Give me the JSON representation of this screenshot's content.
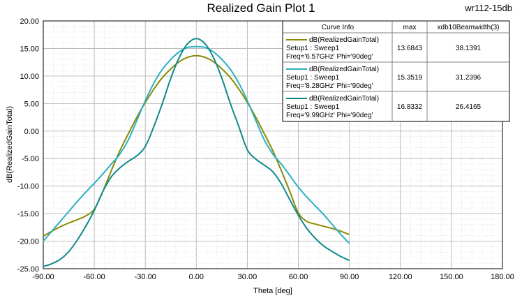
{
  "plot": {
    "title": "Realized Gain Plot 1",
    "project": "wr112-15db"
  },
  "legend": {
    "headers": [
      "Curve Info",
      "max",
      "xdb10Beamwidth(3)"
    ],
    "rows": [
      {
        "name": "dB(RealizedGainTotal)",
        "setup": "Setup1 : Sweep1",
        "freq": "Freq='6.57GHz' Phi='90deg'",
        "max": "13.6843",
        "beamwidth": "38.1391",
        "color": "#8c8a00"
      },
      {
        "name": "dB(RealizedGainTotal)",
        "setup": "Setup1 : Sweep1",
        "freq": "Freq='8.28GHz' Phi='90deg'",
        "max": "15.3519",
        "beamwidth": "31.2396",
        "color": "#2ab0bf"
      },
      {
        "name": "dB(RealizedGainTotal)",
        "setup": "Setup1 : Sweep1",
        "freq": "Freq='9.99GHz' Phi='90deg'",
        "max": "16.8332",
        "beamwidth": "26.4165",
        "color": "#0e8a8a"
      }
    ]
  },
  "chart_data": {
    "type": "line",
    "title": "Realized Gain Plot 1",
    "xlabel": "Theta [deg]",
    "ylabel": "dB(RealizedGainTotal)",
    "xlim": [
      -90,
      180
    ],
    "ylim": [
      -25,
      20
    ],
    "xticks": [
      -90,
      -60,
      -30,
      0,
      30,
      60,
      90,
      120,
      150,
      180
    ],
    "xtick_labels": [
      "-90.00",
      "-60.00",
      "-30.00",
      "0.00",
      "30.00",
      "60.00",
      "90.00",
      "120.00",
      "150.00",
      "180.00"
    ],
    "yticks": [
      -25,
      -20,
      -15,
      -10,
      -5,
      0,
      5,
      10,
      15,
      20
    ],
    "ytick_labels": [
      "-25.00",
      "-20.00",
      "-15.00",
      "-10.00",
      "-5.00",
      "0.00",
      "5.00",
      "10.00",
      "15.00",
      "20.00"
    ],
    "grid": true,
    "series": [
      {
        "name": "Freq='6.57GHz' Phi='90deg'",
        "color": "#8c8a00",
        "x": [
          -90,
          -85,
          -80,
          -75,
          -70,
          -65,
          -60,
          -55,
          -50,
          -45,
          -40,
          -35,
          -30,
          -25,
          -20,
          -15,
          -10,
          -5,
          0,
          5,
          10,
          15,
          20,
          25,
          30,
          35,
          40,
          45,
          50,
          55,
          60,
          65,
          70,
          75,
          80,
          85,
          90
        ],
        "y": [
          -19.1,
          -18.2,
          -17.4,
          -16.7,
          -16.1,
          -15.4,
          -14.2,
          -11.0,
          -7.2,
          -3.6,
          -0.5,
          2.5,
          5.2,
          7.6,
          9.7,
          11.3,
          12.6,
          13.4,
          13.7,
          13.4,
          12.6,
          11.3,
          9.7,
          7.6,
          5.2,
          2.5,
          -0.5,
          -3.6,
          -7.2,
          -11.0,
          -14.9,
          -16.4,
          -16.9,
          -17.3,
          -17.7,
          -18.2,
          -18.8
        ]
      },
      {
        "name": "Freq='8.28GHz' Phi='90deg'",
        "color": "#2ab0bf",
        "x": [
          -90,
          -85,
          -80,
          -75,
          -70,
          -65,
          -60,
          -55,
          -50,
          -45,
          -40,
          -35,
          -30,
          -25,
          -20,
          -15,
          -10,
          -5,
          0,
          5,
          10,
          15,
          20,
          25,
          30,
          35,
          40,
          45,
          50,
          55,
          60,
          65,
          70,
          75,
          80,
          85,
          90
        ],
        "y": [
          -20.0,
          -18.2,
          -16.4,
          -14.6,
          -12.8,
          -11.1,
          -9.5,
          -7.8,
          -6.0,
          -4.2,
          -1.6,
          1.9,
          5.5,
          8.7,
          11.2,
          13.0,
          14.4,
          15.2,
          15.35,
          15.2,
          14.4,
          13.0,
          11.2,
          8.7,
          5.5,
          1.9,
          -1.6,
          -4.2,
          -6.0,
          -8.1,
          -10.2,
          -12.0,
          -13.6,
          -15.2,
          -17.0,
          -18.8,
          -20.4
        ]
      },
      {
        "name": "Freq='9.99GHz' Phi='90deg'",
        "color": "#0e8a8a",
        "x": [
          -90,
          -85,
          -80,
          -75,
          -70,
          -65,
          -60,
          -55,
          -50,
          -45,
          -40,
          -35,
          -30,
          -25,
          -20,
          -15,
          -10,
          -5,
          0,
          5,
          10,
          15,
          20,
          25,
          30,
          35,
          40,
          45,
          50,
          55,
          60,
          65,
          70,
          75,
          80,
          85,
          90
        ],
        "y": [
          -24.6,
          -24.1,
          -23.3,
          -21.9,
          -19.8,
          -17.3,
          -14.4,
          -11.0,
          -8.3,
          -6.7,
          -5.5,
          -4.5,
          -2.8,
          0.8,
          5.0,
          9.6,
          13.4,
          15.9,
          16.8,
          15.9,
          13.4,
          9.6,
          5.0,
          0.8,
          -3.4,
          -5.1,
          -6.2,
          -7.4,
          -9.6,
          -12.5,
          -15.3,
          -17.7,
          -19.5,
          -20.9,
          -21.9,
          -22.8,
          -23.5
        ]
      }
    ]
  }
}
